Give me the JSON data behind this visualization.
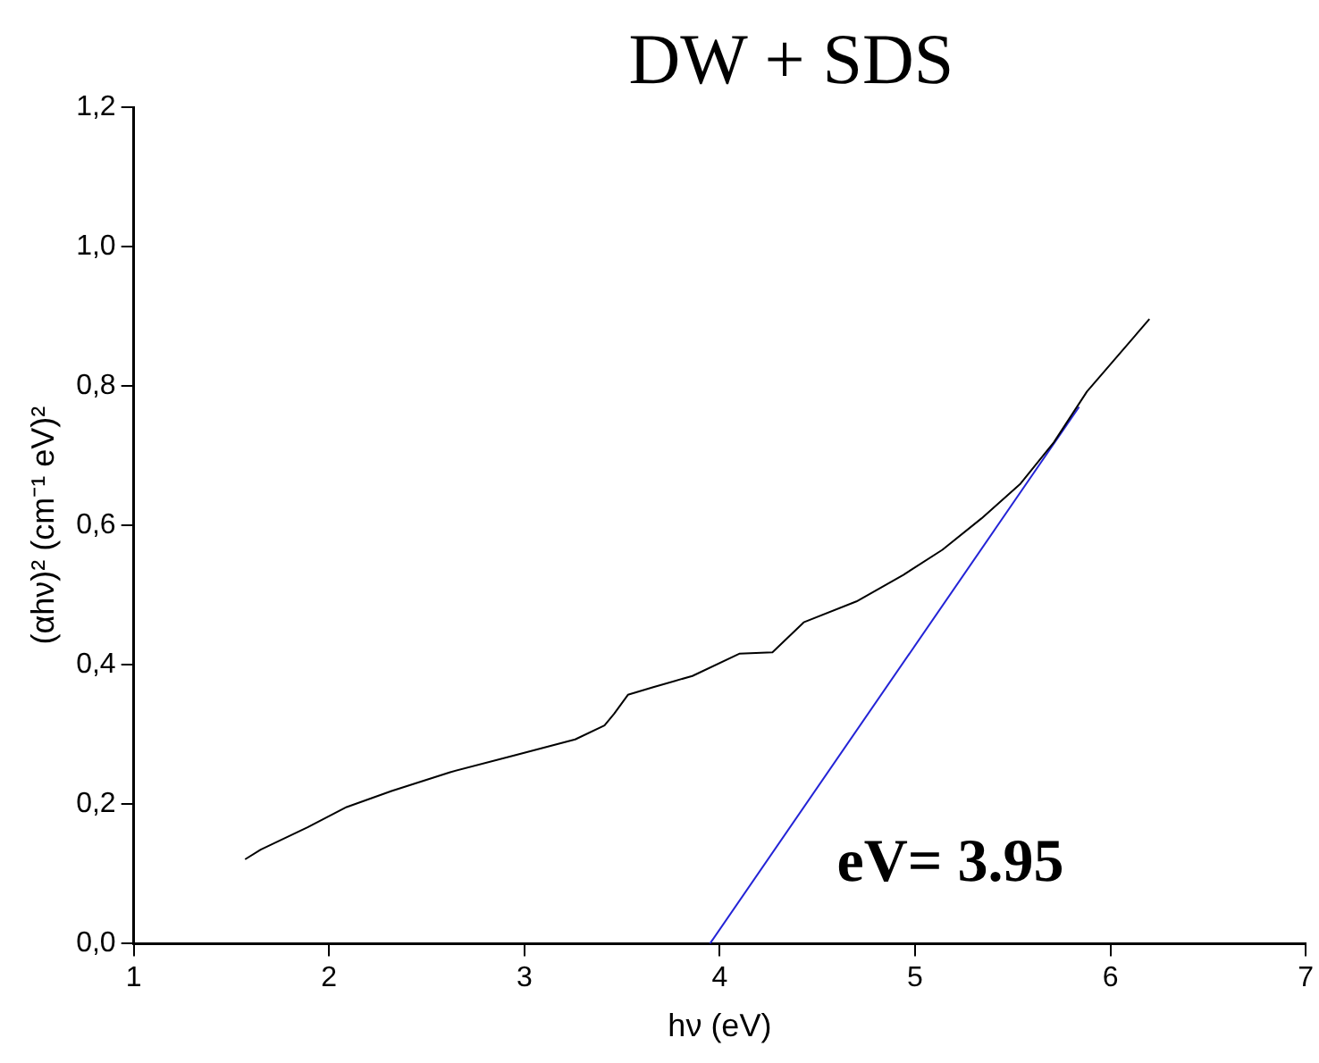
{
  "chart_data": {
    "type": "line",
    "title": "DW + SDS",
    "xlabel": "hν (eV)",
    "ylabel": "(αhν)² (cm⁻¹ eV)²",
    "xlim": [
      1,
      7
    ],
    "xticks": [
      1,
      2,
      3,
      4,
      5,
      6,
      7
    ],
    "ylim": [
      0,
      1.2
    ],
    "yticks": [
      {
        "value": 0,
        "label": "0,0"
      },
      {
        "value": 0.2,
        "label": "0,2"
      },
      {
        "value": 0.4,
        "label": "0,4"
      },
      {
        "value": 0.6,
        "label": "0,6"
      },
      {
        "value": 0.8,
        "label": "0,8"
      },
      {
        "value": 1.0,
        "label": "1,0"
      },
      {
        "value": 1.2,
        "label": "1,2"
      }
    ],
    "grid": false,
    "legend": false,
    "marker": "none",
    "line_style": "solid",
    "annotations": [
      "eV= 3.95"
    ],
    "series": [
      {
        "color": "#000000",
        "x": [
          1.57,
          1.65,
          1.89,
          2.09,
          2.32,
          2.62,
          2.96,
          3.26,
          3.41,
          3.46,
          3.53,
          3.66,
          3.86,
          4.1,
          4.27,
          4.43,
          4.7,
          4.94,
          5.14,
          5.34,
          5.54,
          5.71,
          5.88,
          6.2
        ],
        "values": [
          0.121,
          0.135,
          0.167,
          0.196,
          0.219,
          0.246,
          0.271,
          0.293,
          0.313,
          0.33,
          0.357,
          0.368,
          0.384,
          0.416,
          0.418,
          0.461,
          0.491,
          0.529,
          0.565,
          0.61,
          0.66,
          0.719,
          0.792,
          0.896
        ]
      },
      {
        "type": "line",
        "color": "#2323d6",
        "x": [
          3.95,
          5.84
        ],
        "values": [
          0,
          0.77
        ]
      }
    ]
  }
}
